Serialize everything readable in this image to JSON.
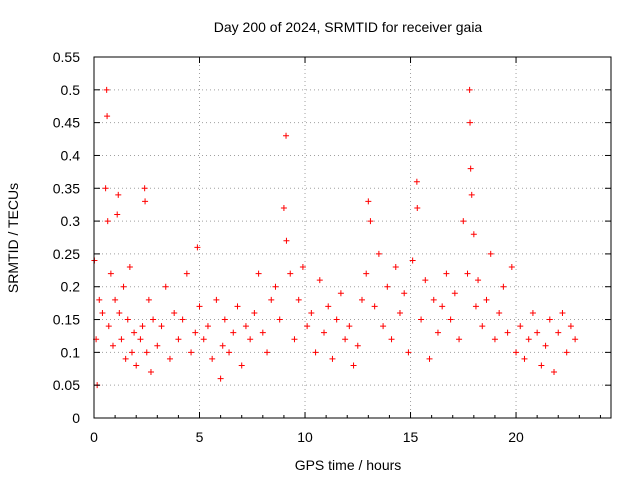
{
  "chart_data": {
    "type": "scatter",
    "title": "Day 200 of 2024, SRMTID for receiver gaia",
    "xlabel": "GPS time / hours",
    "ylabel": "SRMTID / TECUs",
    "xlim": [
      0,
      24.5
    ],
    "ylim": [
      0,
      0.55
    ],
    "x_ticks": [
      0,
      5,
      10,
      15,
      20
    ],
    "x_tick_labels": [
      "0",
      "5",
      "10",
      "15",
      "20"
    ],
    "y_ticks": [
      0,
      0.05,
      0.1,
      0.15,
      0.2,
      0.25,
      0.3,
      0.35,
      0.4,
      0.45,
      0.5,
      0.55
    ],
    "y_tick_labels": [
      "0",
      "0.05",
      "0.1",
      "0.15",
      "0.2",
      "0.25",
      "0.3",
      "0.35",
      "0.4",
      "0.45",
      "0.5",
      "0.55"
    ],
    "grid": true,
    "marker": "+",
    "color": "#ff0000",
    "series": [
      {
        "name": "SRMTID",
        "x": [
          0.02,
          0.1,
          0.15,
          0.25,
          0.4,
          0.55,
          0.6,
          0.62,
          0.65,
          0.7,
          0.8,
          0.9,
          1.0,
          1.1,
          1.15,
          1.2,
          1.3,
          1.4,
          1.5,
          1.6,
          1.7,
          1.8,
          1.9,
          2.0,
          2.2,
          2.3,
          2.4,
          2.42,
          2.5,
          2.6,
          2.7,
          2.8,
          3.0,
          3.2,
          3.4,
          3.6,
          3.8,
          4.0,
          4.2,
          4.4,
          4.6,
          4.8,
          4.9,
          5.0,
          5.2,
          5.4,
          5.6,
          5.8,
          6.0,
          6.1,
          6.2,
          6.4,
          6.6,
          6.8,
          7.0,
          7.2,
          7.4,
          7.6,
          7.8,
          8.0,
          8.2,
          8.4,
          8.6,
          8.8,
          9.0,
          9.1,
          9.12,
          9.3,
          9.5,
          9.7,
          9.9,
          10.1,
          10.3,
          10.5,
          10.7,
          10.9,
          11.1,
          11.3,
          11.5,
          11.7,
          11.9,
          12.1,
          12.3,
          12.5,
          12.7,
          12.9,
          13.0,
          13.1,
          13.3,
          13.5,
          13.7,
          13.9,
          14.1,
          14.3,
          14.5,
          14.7,
          14.9,
          15.1,
          15.3,
          15.32,
          15.5,
          15.7,
          15.9,
          16.1,
          16.3,
          16.5,
          16.7,
          16.9,
          17.1,
          17.3,
          17.5,
          17.7,
          17.8,
          17.82,
          17.85,
          17.9,
          18.0,
          18.1,
          18.2,
          18.4,
          18.6,
          18.8,
          19.0,
          19.2,
          19.4,
          19.6,
          19.8,
          20.0,
          20.2,
          20.4,
          20.6,
          20.8,
          21.0,
          21.2,
          21.4,
          21.6,
          21.8,
          22.0,
          22.2,
          22.4,
          22.6,
          22.8
        ],
        "y": [
          0.24,
          0.12,
          0.05,
          0.18,
          0.16,
          0.35,
          0.5,
          0.46,
          0.3,
          0.14,
          0.22,
          0.11,
          0.18,
          0.31,
          0.34,
          0.16,
          0.12,
          0.2,
          0.09,
          0.15,
          0.23,
          0.1,
          0.13,
          0.08,
          0.12,
          0.14,
          0.35,
          0.33,
          0.1,
          0.18,
          0.07,
          0.15,
          0.11,
          0.14,
          0.2,
          0.09,
          0.16,
          0.12,
          0.15,
          0.22,
          0.1,
          0.13,
          0.26,
          0.17,
          0.12,
          0.14,
          0.09,
          0.18,
          0.06,
          0.11,
          0.15,
          0.1,
          0.13,
          0.17,
          0.08,
          0.14,
          0.12,
          0.16,
          0.22,
          0.13,
          0.1,
          0.18,
          0.2,
          0.15,
          0.32,
          0.43,
          0.27,
          0.22,
          0.12,
          0.18,
          0.23,
          0.14,
          0.16,
          0.1,
          0.21,
          0.13,
          0.17,
          0.09,
          0.15,
          0.19,
          0.12,
          0.14,
          0.08,
          0.11,
          0.18,
          0.22,
          0.33,
          0.3,
          0.17,
          0.25,
          0.14,
          0.2,
          0.12,
          0.23,
          0.16,
          0.19,
          0.1,
          0.24,
          0.36,
          0.32,
          0.15,
          0.21,
          0.09,
          0.18,
          0.13,
          0.17,
          0.22,
          0.15,
          0.19,
          0.12,
          0.3,
          0.22,
          0.5,
          0.45,
          0.38,
          0.34,
          0.28,
          0.17,
          0.21,
          0.14,
          0.18,
          0.25,
          0.12,
          0.16,
          0.2,
          0.13,
          0.23,
          0.1,
          0.14,
          0.09,
          0.12,
          0.16,
          0.13,
          0.08,
          0.11,
          0.15,
          0.07,
          0.13,
          0.16,
          0.1,
          0.14,
          0.12
        ]
      }
    ]
  }
}
